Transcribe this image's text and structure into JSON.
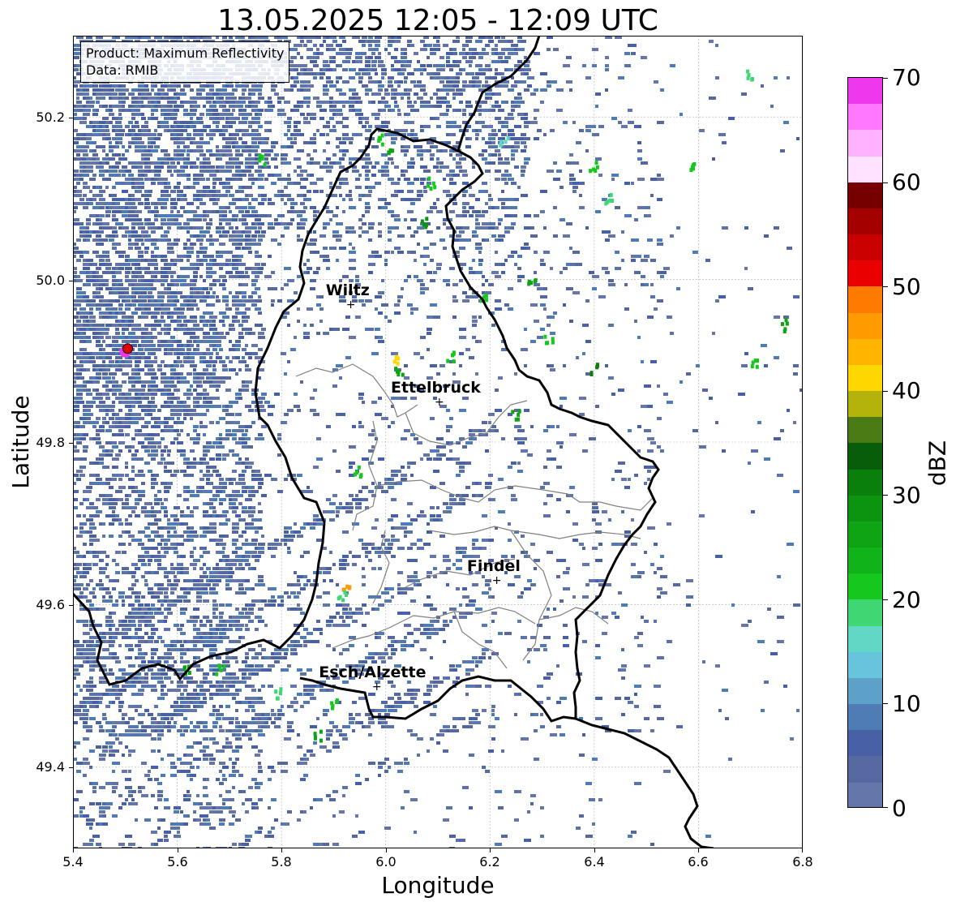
{
  "title": "13.05.2025 12:05 - 12:09 UTC",
  "info": {
    "product": "Product: Maximum Reflectivity",
    "data": "Data: RMIB"
  },
  "axes": {
    "xlabel": "Longitude",
    "ylabel": "Latitude",
    "xticks": [
      "5.4",
      "5.6",
      "5.8",
      "6.0",
      "6.2",
      "6.4",
      "6.6",
      "6.8"
    ],
    "yticks": [
      "50.2",
      "50.0",
      "49.8",
      "49.6",
      "49.4"
    ],
    "xlim": [
      5.4,
      6.8
    ],
    "ylim": [
      49.3,
      50.3
    ],
    "grid": true
  },
  "colorbar": {
    "label": "dBZ",
    "ticks": [
      "70",
      "60",
      "50",
      "40",
      "30",
      "20",
      "10",
      "0"
    ],
    "range": [
      0,
      70
    ],
    "colors": [
      "#6577aa",
      "#55689f",
      "#4860a6",
      "#4f7cb4",
      "#5da0c8",
      "#68c3dc",
      "#62d7c5",
      "#3fd773",
      "#16c81e",
      "#10b41a",
      "#0ea414",
      "#0c930f",
      "#0a7f0c",
      "#075d09",
      "#497a13",
      "#b2b20b",
      "#ffd700",
      "#ffb400",
      "#ff9b00",
      "#ff7b00",
      "#ea0000",
      "#c80000",
      "#a50000",
      "#760000",
      "#ffe2ff",
      "#ffb2ff",
      "#ff78ff",
      "#ee38ee"
    ]
  },
  "cities": [
    {
      "name": "Wiltz",
      "lon": 5.93,
      "lat": 49.97
    },
    {
      "name": "Ettelbruck",
      "lon": 6.1,
      "lat": 49.85
    },
    {
      "name": "Findel",
      "lon": 6.21,
      "lat": 49.63
    },
    {
      "name": "Esch/Alzette",
      "lon": 5.98,
      "lat": 49.5
    }
  ],
  "radar_site": {
    "lon": 5.505,
    "lat": 49.915
  },
  "colors": {
    "border": "#000000",
    "canton": "#808080",
    "grid": "#b0b0b0"
  }
}
